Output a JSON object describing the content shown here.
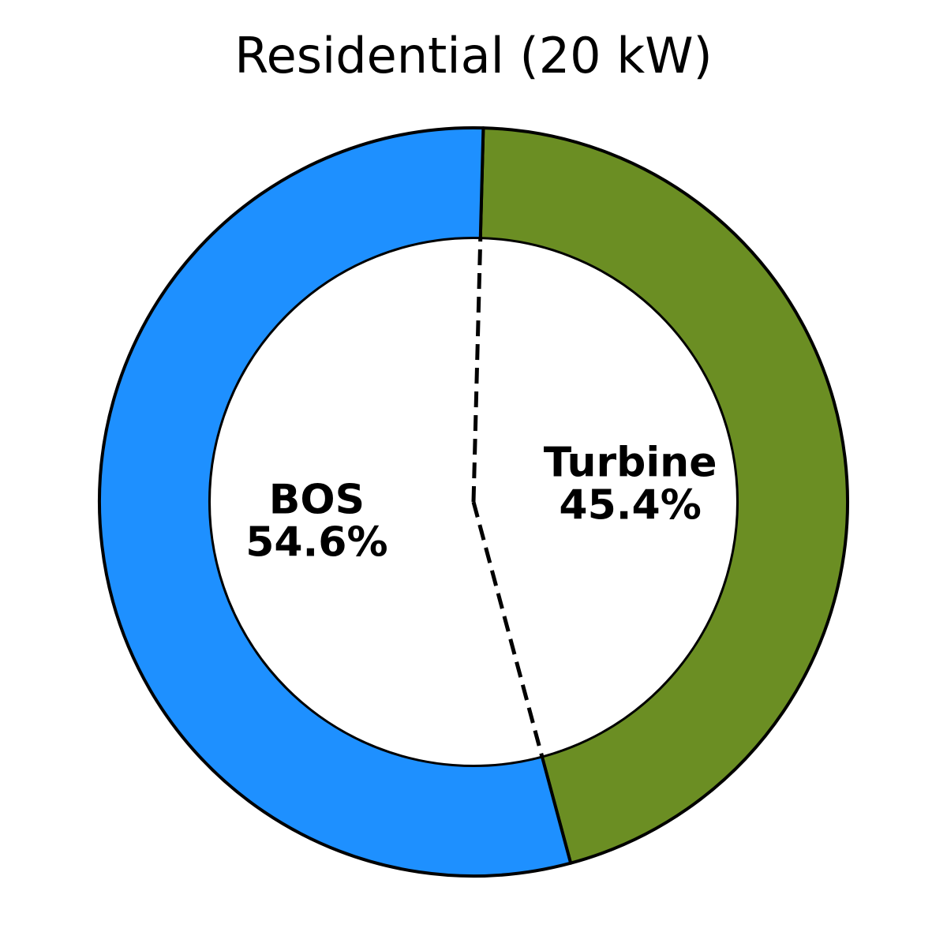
{
  "chart_data": {
    "type": "pie",
    "title": "Residential (20 kW)",
    "donut": true,
    "slices": [
      {
        "label": "Turbine",
        "value": 45.4,
        "value_label": "45.4%",
        "color": "#6b8e23"
      },
      {
        "label": "BOS",
        "value": 54.6,
        "value_label": "54.6%",
        "color": "#1e90ff"
      }
    ]
  }
}
